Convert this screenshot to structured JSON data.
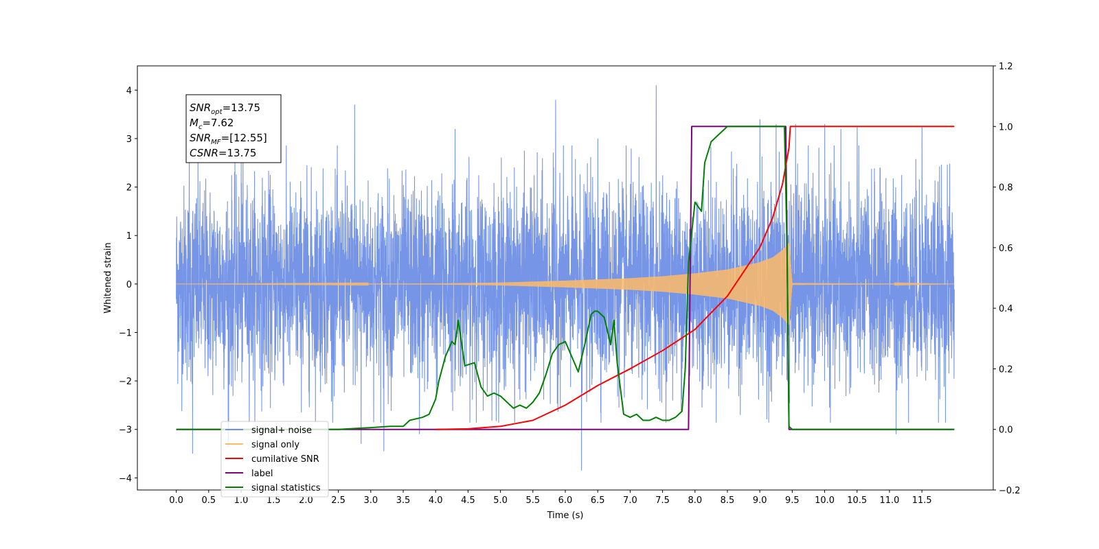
{
  "chart_data": {
    "type": "line",
    "xlabel": "Time (s)",
    "ylabel": "Whitened strain",
    "xlim": [
      -0.6,
      12.6
    ],
    "ylim": [
      -4.25,
      4.5
    ],
    "y2lim": [
      -0.2,
      1.2
    ],
    "x_ticks": [
      0.0,
      0.5,
      1.0,
      1.5,
      2.0,
      2.5,
      3.0,
      3.5,
      4.0,
      4.5,
      5.0,
      5.5,
      6.0,
      6.5,
      7.0,
      7.5,
      8.0,
      8.5,
      9.0,
      9.5,
      10.0,
      10.5,
      11.0,
      11.5
    ],
    "x_tick_labels": [
      "0.0",
      "0.5",
      "1.0",
      "1.5",
      "2.0",
      "2.5",
      "3.0",
      "3.5",
      "4.0",
      "4.5",
      "5.0",
      "5.5",
      "6.0",
      "6.5",
      "7.0",
      "7.5",
      "8.0",
      "8.5",
      "9.0",
      "9.5",
      "10.0",
      "10.5",
      "11.0",
      "11.5"
    ],
    "y_ticks": [
      -4,
      -3,
      -2,
      -1,
      0,
      1,
      2,
      3,
      4
    ],
    "y_tick_labels": [
      "−4",
      "−3",
      "−2",
      "−1",
      "0",
      "1",
      "2",
      "3",
      "4"
    ],
    "y2_ticks": [
      -0.2,
      0.0,
      0.2,
      0.4,
      0.6,
      0.8,
      1.0,
      1.2
    ],
    "y2_tick_labels": [
      "−0.2",
      "0.0",
      "0.2",
      "0.4",
      "0.6",
      "0.8",
      "1.0",
      "1.2"
    ],
    "grid": false,
    "legend_position": "bottom-left",
    "legend": [
      {
        "label": "signal+ noise",
        "color": "#6f8fe6"
      },
      {
        "label": "signal only",
        "color": "#ffbb66"
      },
      {
        "label": "cumilative SNR",
        "color": "#ff0000"
      },
      {
        "label": "label",
        "color": "#800080"
      },
      {
        "label": "signal statistics",
        "color": "#008000"
      }
    ],
    "annotation": [
      {
        "base": "SNR",
        "sub": "opt",
        "value": "=13.75"
      },
      {
        "base": "M",
        "sub": "c",
        "value": "=7.62"
      },
      {
        "base": "SNR",
        "sub": "MF",
        "value": "=[12.55]"
      },
      {
        "base": "CSNR",
        "sub": "",
        "value": "=13.75"
      }
    ],
    "series": [
      {
        "name": "signal+ noise",
        "axis": "left",
        "color": "#6f8fe6",
        "x_range": [
          0.0,
          12.0
        ],
        "envelope_low": -2.2,
        "envelope_high": 2.2,
        "peaks": [
          [
            0.2,
            2.7
          ],
          [
            0.25,
            -3.5
          ],
          [
            0.8,
            -3.35
          ],
          [
            1.0,
            2.6
          ],
          [
            2.75,
            3.7
          ],
          [
            2.85,
            -3.3
          ],
          [
            3.2,
            -3.45
          ],
          [
            3.75,
            -3.1
          ],
          [
            4.3,
            3.2
          ],
          [
            5.85,
            3.8
          ],
          [
            6.25,
            -3.85
          ],
          [
            6.5,
            3.0
          ],
          [
            7.4,
            4.1
          ],
          [
            9.0,
            3.4
          ],
          [
            9.25,
            3.3
          ],
          [
            9.55,
            3.3
          ],
          [
            10.0,
            3.3
          ],
          [
            10.25,
            3.2
          ],
          [
            10.5,
            3.25
          ],
          [
            11.1,
            -3.1
          ],
          [
            11.5,
            3.25
          ]
        ]
      },
      {
        "name": "signal only",
        "axis": "left",
        "color": "#ffbb66",
        "x_range": [
          0.0,
          12.0
        ],
        "amplitude_x": [
          0.0,
          4.0,
          5.0,
          6.0,
          7.0,
          7.5,
          8.0,
          8.5,
          9.0,
          9.2,
          9.35,
          9.45,
          9.5,
          12.0
        ],
        "amplitude": [
          0.0,
          0.01,
          0.03,
          0.07,
          0.12,
          0.16,
          0.22,
          0.3,
          0.45,
          0.55,
          0.7,
          0.85,
          0.02,
          0.0
        ]
      },
      {
        "name": "cumilative SNR",
        "axis": "right",
        "color": "#ff0000",
        "x": [
          4.0,
          4.5,
          5.0,
          5.5,
          6.0,
          6.5,
          7.0,
          7.5,
          8.0,
          8.5,
          9.0,
          9.2,
          9.35,
          9.45,
          9.47,
          12.0
        ],
        "y": [
          0.0,
          0.002,
          0.01,
          0.03,
          0.08,
          0.145,
          0.2,
          0.26,
          0.33,
          0.44,
          0.6,
          0.7,
          0.81,
          0.93,
          1.0,
          1.0
        ]
      },
      {
        "name": "label",
        "axis": "right",
        "color": "#800080",
        "x": [
          0.0,
          7.9,
          7.95,
          9.4,
          9.45,
          12.0
        ],
        "y": [
          0.0,
          0.0,
          1.0,
          1.0,
          0.0,
          0.0
        ]
      },
      {
        "name": "signal statistics",
        "axis": "right",
        "color": "#008000",
        "x": [
          0.0,
          2.5,
          2.75,
          3.0,
          3.3,
          3.5,
          3.6,
          3.8,
          3.9,
          4.0,
          4.05,
          4.15,
          4.25,
          4.3,
          4.35,
          4.45,
          4.6,
          4.7,
          4.8,
          4.9,
          5.0,
          5.1,
          5.2,
          5.3,
          5.4,
          5.5,
          5.6,
          5.7,
          5.8,
          5.9,
          6.0,
          6.1,
          6.2,
          6.3,
          6.4,
          6.45,
          6.5,
          6.6,
          6.7,
          6.75,
          6.8,
          6.9,
          7.0,
          7.1,
          7.2,
          7.3,
          7.4,
          7.5,
          7.6,
          7.7,
          7.8,
          7.85,
          7.9,
          8.0,
          8.1,
          8.15,
          8.25,
          8.35,
          8.5,
          8.6,
          8.7,
          9.0,
          9.3,
          9.38,
          9.42,
          9.45,
          9.5,
          12.0
        ],
        "y": [
          0.0,
          0.0,
          0.003,
          0.006,
          0.01,
          0.01,
          0.03,
          0.04,
          0.05,
          0.1,
          0.16,
          0.24,
          0.29,
          0.28,
          0.36,
          0.21,
          0.22,
          0.14,
          0.11,
          0.12,
          0.11,
          0.09,
          0.07,
          0.08,
          0.07,
          0.09,
          0.12,
          0.18,
          0.25,
          0.28,
          0.29,
          0.24,
          0.19,
          0.28,
          0.38,
          0.39,
          0.39,
          0.37,
          0.28,
          0.36,
          0.22,
          0.05,
          0.04,
          0.05,
          0.03,
          0.03,
          0.04,
          0.03,
          0.03,
          0.04,
          0.06,
          0.2,
          0.55,
          0.75,
          0.72,
          0.88,
          0.95,
          0.97,
          1.0,
          1.0,
          1.0,
          1.0,
          1.0,
          1.0,
          0.6,
          0.01,
          0.0,
          0.0
        ]
      }
    ]
  }
}
